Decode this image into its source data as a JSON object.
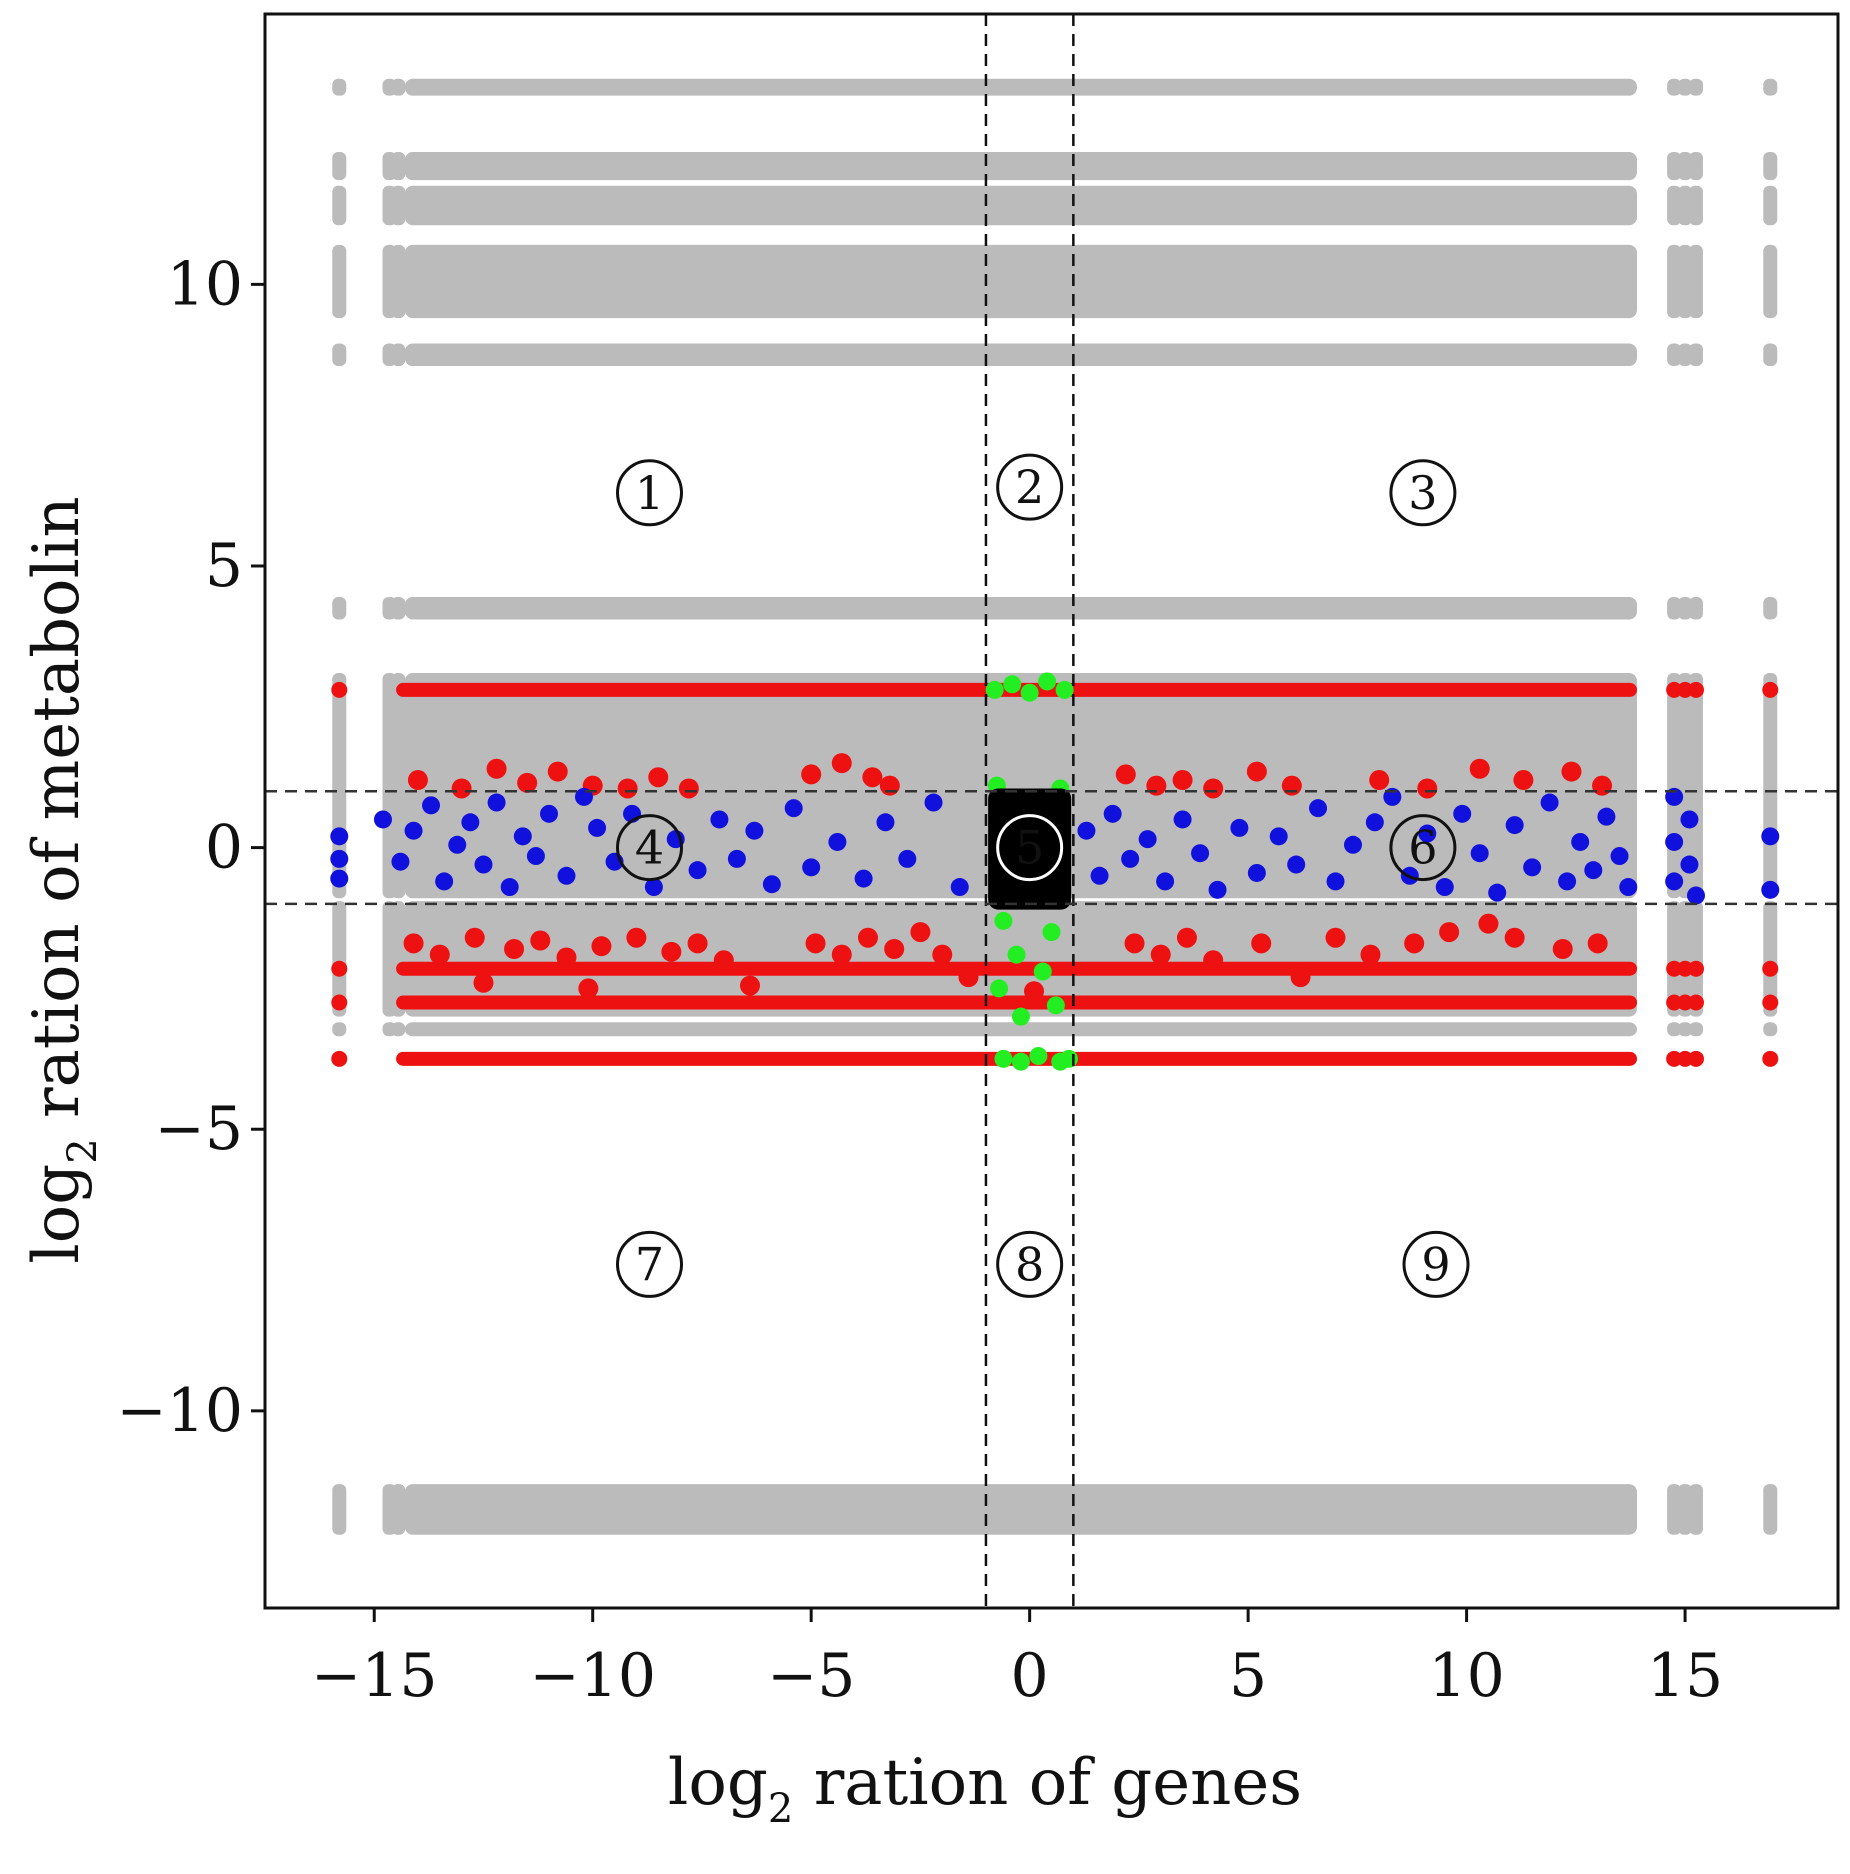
{
  "chart_data": {
    "type": "scatter",
    "xlabel_main": "log",
    "xlabel_sub": "2",
    "xlabel_rest": " ration of genes",
    "ylabel_main": "log",
    "ylabel_sub": "2",
    "ylabel_rest": " ration of metabolin",
    "xlim": [
      -17.5,
      18.5
    ],
    "ylim": [
      -13.5,
      14.8
    ],
    "xticks": [
      {
        "value": -15,
        "label": "−15"
      },
      {
        "value": -10,
        "label": "−10"
      },
      {
        "value": -5,
        "label": "−5"
      },
      {
        "value": 0,
        "label": "0"
      },
      {
        "value": 5,
        "label": "5"
      },
      {
        "value": 10,
        "label": "10"
      },
      {
        "value": 15,
        "label": "15"
      }
    ],
    "yticks": [
      {
        "value": -10,
        "label": "−10"
      },
      {
        "value": -5,
        "label": "−5"
      },
      {
        "value": 0,
        "label": "0"
      },
      {
        "value": 5,
        "label": "5"
      },
      {
        "value": 10,
        "label": "10"
      }
    ],
    "thresholds": {
      "x": [
        -1,
        1
      ],
      "y": [
        -1,
        1
      ]
    },
    "colors": {
      "gray": "#bbbbbb",
      "red": "#ee1111",
      "blue": "#1111dd",
      "green": "#22ee22",
      "black": "#000000"
    },
    "gray_bands": [
      {
        "y0": 13.35,
        "y1": 13.65
      },
      {
        "y0": 11.85,
        "y1": 12.35
      },
      {
        "y0": 11.05,
        "y1": 11.75
      },
      {
        "y0": 9.4,
        "y1": 10.7
      },
      {
        "y0": 8.55,
        "y1": 8.95
      },
      {
        "y0": 4.05,
        "y1": 4.45
      },
      {
        "y0": -0.9,
        "y1": 3.1
      },
      {
        "y0": -3.0,
        "y1": -0.95
      },
      {
        "y0": -3.35,
        "y1": -3.1
      },
      {
        "y0": -12.2,
        "y1": -11.3
      }
    ],
    "gray_column_x": [
      -15.8,
      -14.65,
      -14.45,
      14.75,
      15.0,
      15.25,
      16.95
    ],
    "red_rows": [
      -3.75,
      -2.75,
      -2.15,
      2.8
    ],
    "red_column_x": [
      -15.8,
      14.75,
      15.0,
      15.25,
      16.95
    ],
    "red_points": [
      [
        -14.0,
        1.2
      ],
      [
        -13.0,
        1.05
      ],
      [
        -12.2,
        1.4
      ],
      [
        -11.5,
        1.15
      ],
      [
        -10.8,
        1.35
      ],
      [
        -10.0,
        1.1
      ],
      [
        -9.2,
        1.05
      ],
      [
        -8.5,
        1.25
      ],
      [
        -7.8,
        1.05
      ],
      [
        -5.0,
        1.3
      ],
      [
        -4.3,
        1.5
      ],
      [
        -3.6,
        1.25
      ],
      [
        -3.2,
        1.1
      ],
      [
        2.2,
        1.3
      ],
      [
        2.9,
        1.1
      ],
      [
        3.5,
        1.2
      ],
      [
        4.2,
        1.05
      ],
      [
        5.2,
        1.35
      ],
      [
        6.0,
        1.1
      ],
      [
        8.0,
        1.2
      ],
      [
        9.1,
        1.05
      ],
      [
        10.3,
        1.4
      ],
      [
        11.3,
        1.2
      ],
      [
        12.4,
        1.35
      ],
      [
        13.1,
        1.1
      ],
      [
        -14.1,
        -1.7
      ],
      [
        -13.5,
        -1.9
      ],
      [
        -12.7,
        -1.6
      ],
      [
        -11.8,
        -1.8
      ],
      [
        -11.2,
        -1.65
      ],
      [
        -10.6,
        -1.95
      ],
      [
        -9.8,
        -1.75
      ],
      [
        -9.0,
        -1.6
      ],
      [
        -8.2,
        -1.85
      ],
      [
        -7.6,
        -1.7
      ],
      [
        -7.0,
        -2.0
      ],
      [
        -4.9,
        -1.7
      ],
      [
        -4.3,
        -1.9
      ],
      [
        -3.7,
        -1.6
      ],
      [
        -3.1,
        -1.8
      ],
      [
        -2.5,
        -1.5
      ],
      [
        -2.0,
        -1.9
      ],
      [
        -1.4,
        -2.3
      ],
      [
        2.4,
        -1.7
      ],
      [
        3.0,
        -1.9
      ],
      [
        3.6,
        -1.6
      ],
      [
        4.2,
        -2.0
      ],
      [
        5.3,
        -1.7
      ],
      [
        6.2,
        -2.3
      ],
      [
        7.0,
        -1.6
      ],
      [
        7.8,
        -1.9
      ],
      [
        8.8,
        -1.7
      ],
      [
        9.6,
        -1.5
      ],
      [
        10.5,
        -1.35
      ],
      [
        11.1,
        -1.6
      ],
      [
        12.2,
        -1.8
      ],
      [
        13.0,
        -1.7
      ],
      [
        -12.5,
        -2.4
      ],
      [
        -10.1,
        -2.5
      ],
      [
        -6.4,
        -2.45
      ],
      [
        0.1,
        -2.55
      ]
    ],
    "blue_points": [
      [
        -15.8,
        0.2
      ],
      [
        -15.8,
        -0.2
      ],
      [
        -15.8,
        -0.55
      ],
      [
        -14.8,
        0.5
      ],
      [
        -14.4,
        -0.25
      ],
      [
        -14.1,
        0.3
      ],
      [
        -13.7,
        0.75
      ],
      [
        -13.4,
        -0.6
      ],
      [
        -13.1,
        0.05
      ],
      [
        -12.8,
        0.45
      ],
      [
        -12.5,
        -0.3
      ],
      [
        -12.2,
        0.8
      ],
      [
        -11.9,
        -0.7
      ],
      [
        -11.6,
        0.2
      ],
      [
        -11.3,
        -0.15
      ],
      [
        -11.0,
        0.6
      ],
      [
        -10.6,
        -0.5
      ],
      [
        -10.2,
        0.9
      ],
      [
        -9.9,
        0.35
      ],
      [
        -9.5,
        -0.25
      ],
      [
        -9.1,
        0.6
      ],
      [
        -8.6,
        -0.7
      ],
      [
        -8.1,
        0.15
      ],
      [
        -7.6,
        -0.4
      ],
      [
        -7.1,
        0.5
      ],
      [
        -6.7,
        -0.2
      ],
      [
        -6.3,
        0.3
      ],
      [
        -5.9,
        -0.65
      ],
      [
        -5.4,
        0.7
      ],
      [
        -5.0,
        -0.35
      ],
      [
        -4.4,
        0.1
      ],
      [
        -3.8,
        -0.55
      ],
      [
        -3.3,
        0.45
      ],
      [
        -2.8,
        -0.2
      ],
      [
        -2.2,
        0.8
      ],
      [
        -1.6,
        -0.7
      ],
      [
        1.3,
        0.3
      ],
      [
        1.6,
        -0.5
      ],
      [
        1.9,
        0.6
      ],
      [
        2.3,
        -0.2
      ],
      [
        2.7,
        0.15
      ],
      [
        3.1,
        -0.6
      ],
      [
        3.5,
        0.5
      ],
      [
        3.9,
        -0.1
      ],
      [
        4.3,
        -0.75
      ],
      [
        4.8,
        0.35
      ],
      [
        5.2,
        -0.45
      ],
      [
        5.7,
        0.2
      ],
      [
        6.1,
        -0.3
      ],
      [
        6.6,
        0.7
      ],
      [
        7.0,
        -0.6
      ],
      [
        7.4,
        0.05
      ],
      [
        7.9,
        0.45
      ],
      [
        8.3,
        0.9
      ],
      [
        8.7,
        -0.5
      ],
      [
        9.1,
        0.25
      ],
      [
        9.5,
        -0.7
      ],
      [
        9.9,
        0.6
      ],
      [
        10.3,
        -0.1
      ],
      [
        10.7,
        -0.8
      ],
      [
        11.1,
        0.4
      ],
      [
        11.5,
        -0.35
      ],
      [
        11.9,
        0.8
      ],
      [
        12.3,
        -0.6
      ],
      [
        12.6,
        0.1
      ],
      [
        12.9,
        -0.4
      ],
      [
        13.2,
        0.55
      ],
      [
        13.5,
        -0.15
      ],
      [
        13.7,
        -0.7
      ],
      [
        14.75,
        0.9
      ],
      [
        14.75,
        0.1
      ],
      [
        14.75,
        -0.6
      ],
      [
        15.1,
        0.5
      ],
      [
        15.1,
        -0.3
      ],
      [
        15.25,
        -0.85
      ],
      [
        16.95,
        0.2
      ],
      [
        16.95,
        -0.75
      ]
    ],
    "green_points": [
      [
        -0.8,
        2.8
      ],
      [
        -0.4,
        2.9
      ],
      [
        0.0,
        2.75
      ],
      [
        0.4,
        2.95
      ],
      [
        0.8,
        2.8
      ],
      [
        -0.75,
        1.1
      ],
      [
        0.7,
        1.05
      ],
      [
        -0.6,
        -1.3
      ],
      [
        0.5,
        -1.5
      ],
      [
        -0.3,
        -1.9
      ],
      [
        0.3,
        -2.2
      ],
      [
        -0.7,
        -2.5
      ],
      [
        0.6,
        -2.8
      ],
      [
        -0.2,
        -3.0
      ],
      [
        -0.6,
        -3.75
      ],
      [
        -0.2,
        -3.8
      ],
      [
        0.2,
        -3.7
      ],
      [
        0.7,
        -3.8
      ],
      [
        0.9,
        -3.75
      ]
    ],
    "black_box": {
      "x0": -0.95,
      "x1": 0.95,
      "y0": -1.1,
      "y1": 1.05
    },
    "regions": [
      {
        "label": "①",
        "x": -8.7,
        "y": 6.3
      },
      {
        "label": "②",
        "x": 0.0,
        "y": 6.4
      },
      {
        "label": "③",
        "x": 9.0,
        "y": 6.3
      },
      {
        "label": "④",
        "x": -8.7,
        "y": 0.0
      },
      {
        "label": "⑤",
        "x": 0.0,
        "y": 0.0
      },
      {
        "label": "⑥",
        "x": 9.0,
        "y": 0.0
      },
      {
        "label": "⑦",
        "x": -8.7,
        "y": -7.4
      },
      {
        "label": "⑧",
        "x": 0.0,
        "y": -7.4
      },
      {
        "label": "⑨",
        "x": 9.3,
        "y": -7.4
      }
    ]
  }
}
